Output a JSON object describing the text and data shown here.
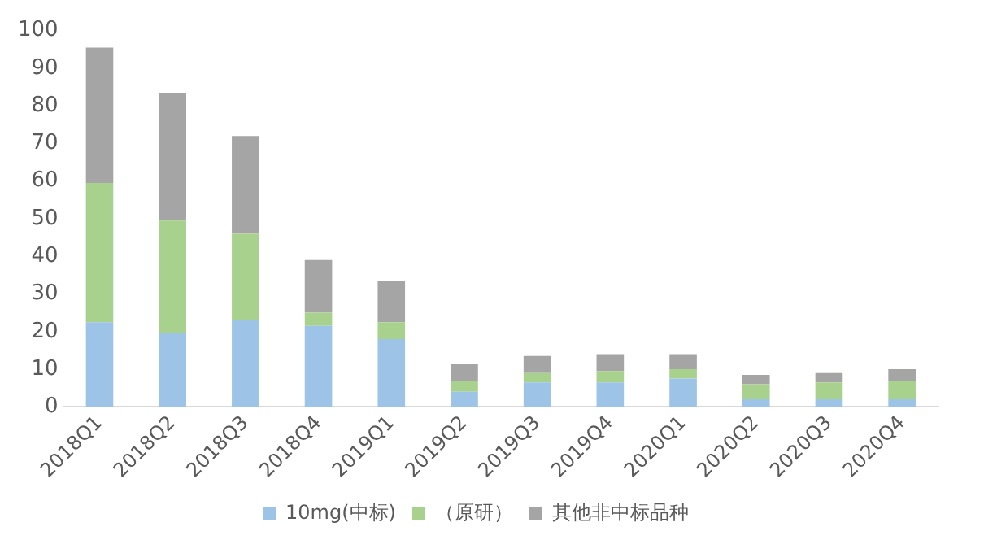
{
  "chart_data": {
    "type": "bar",
    "stacked": true,
    "categories": [
      "2018Q1",
      "2018Q2",
      "2018Q3",
      "2018Q4",
      "2019Q1",
      "2019Q2",
      "2019Q3",
      "2019Q4",
      "2020Q1",
      "2020Q2",
      "2020Q3",
      "2020Q4"
    ],
    "series": [
      {
        "name": "10mg(中标)",
        "color": "#9dc3e6",
        "values": [
          22.5,
          19.5,
          23,
          21.5,
          18,
          4,
          6.5,
          6.5,
          7.5,
          2,
          2,
          2
        ]
      },
      {
        "name": "（原研）",
        "color": "#a9d18e",
        "values": [
          37,
          30,
          23,
          3.5,
          4.5,
          3,
          2.5,
          3,
          2.5,
          4,
          4.5,
          5
        ]
      },
      {
        "name": "其他非中标品种",
        "color": "#a5a5a5",
        "values": [
          36,
          34,
          26,
          14,
          11,
          4.5,
          4.5,
          4.5,
          4,
          2.5,
          2.5,
          3
        ]
      }
    ],
    "ylim": [
      0,
      100
    ],
    "yticks": [
      0,
      10,
      20,
      30,
      40,
      50,
      60,
      70,
      80,
      90,
      100
    ],
    "grid": false,
    "legend": "bottom"
  }
}
